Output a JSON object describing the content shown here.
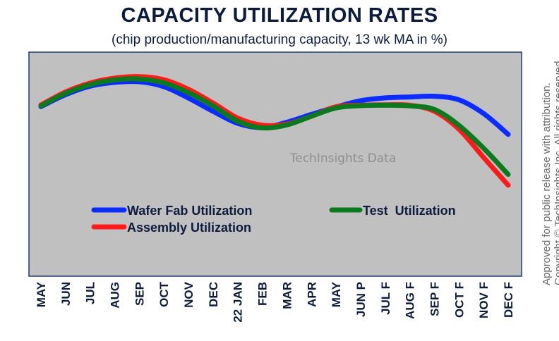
{
  "header": {
    "title": "CAPACITY UTILIZATION RATES",
    "subtitle": "(chip production/manufacturing capacity, 13 wk MA in %)"
  },
  "watermark": "TechInsights Data",
  "side_note": {
    "line1": "Approved for public release with attribution.",
    "line2": "Copyright © TechInsights Inc. All rights reserved."
  },
  "colors": {
    "plot_background": "#c0c0c0",
    "plot_border": "#1f3b73",
    "wafer_fab": "#0a2cff",
    "test": "#0b7a1e",
    "assembly": "#ff1a1a",
    "text": "#0d1b3e"
  },
  "chart_data": {
    "type": "line",
    "title": "CAPACITY UTILIZATION RATES",
    "subtitle": "(chip production/manufacturing capacity, 13 wk MA in %)",
    "xlabel": "",
    "ylabel": "",
    "grid": false,
    "legend_position": "lower-left",
    "ylim": [
      0,
      100
    ],
    "categories": [
      "MAY",
      "JUN",
      "JUL",
      "AUG",
      "SEP",
      "OCT",
      "NOV",
      "DEC",
      "22 JAN",
      "FEB",
      "MAR",
      "APR",
      "MAY",
      "JUN P",
      "JUL F",
      "AUG F",
      "SEP F",
      "OCT F",
      "NOV F",
      "DEC F"
    ],
    "series": [
      {
        "name": "Wafer Fab Utilization",
        "color": "#0a2cff",
        "values": [
          75.7,
          81.0,
          84.8,
          86.5,
          86.8,
          84.6,
          79.5,
          73.6,
          68.2,
          66.3,
          68.7,
          72.2,
          75.5,
          78.3,
          79.6,
          80.0,
          80.3,
          78.7,
          72.6,
          63.3
        ]
      },
      {
        "name": "Test  Utilization",
        "color": "#0b7a1e",
        "values": [
          76.0,
          81.6,
          85.5,
          87.6,
          88.0,
          86.3,
          81.9,
          76.0,
          69.2,
          66.2,
          67.5,
          71.4,
          75.1,
          76.1,
          76.3,
          76.0,
          74.4,
          67.3,
          57.1,
          45.4
        ]
      },
      {
        "name": "Assembly Utilization",
        "color": "#ff1a1a",
        "values": [
          76.4,
          82.2,
          86.2,
          88.4,
          89.1,
          87.7,
          83.4,
          77.3,
          70.6,
          67.4,
          67.9,
          71.4,
          75.6,
          76.3,
          76.5,
          76.3,
          73.6,
          65.6,
          53.0,
          40.6
        ]
      }
    ]
  }
}
